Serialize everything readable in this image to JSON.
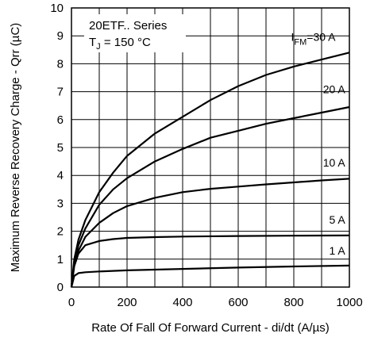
{
  "chart_data": {
    "type": "line",
    "title": "",
    "xlabel": "Rate Of Fall Of Forward Current - di/dt (A/µs)",
    "ylabel": "Maximum Reverse Recovery Charge - Qrr (µC)",
    "xlim": [
      0,
      1000
    ],
    "ylim": [
      0,
      10
    ],
    "xticks": [
      "0",
      "200",
      "400",
      "600",
      "800",
      "1000"
    ],
    "yticks": [
      "0",
      "1",
      "2",
      "3",
      "4",
      "5",
      "6",
      "7",
      "8",
      "9",
      "10"
    ],
    "grid": true,
    "annotation": {
      "series_name": "20ETF.. Series",
      "tj_prefix": "T",
      "tj_sub": "J",
      "tj_value": " = 150 °C",
      "param_prefix": "I",
      "param_sub": "FM"
    },
    "series": [
      {
        "label": "=30 A",
        "x": [
          0,
          10,
          25,
          50,
          100,
          150,
          200,
          300,
          400,
          500,
          600,
          700,
          800,
          900,
          1000
        ],
        "y": [
          0,
          1.0,
          1.7,
          2.4,
          3.4,
          4.1,
          4.7,
          5.5,
          6.1,
          6.7,
          7.2,
          7.6,
          7.9,
          8.15,
          8.4
        ]
      },
      {
        "label": "20 A",
        "x": [
          0,
          10,
          25,
          50,
          100,
          150,
          200,
          300,
          400,
          500,
          600,
          700,
          800,
          900,
          1000
        ],
        "y": [
          0,
          0.9,
          1.5,
          2.1,
          2.95,
          3.5,
          3.9,
          4.5,
          4.95,
          5.35,
          5.6,
          5.85,
          6.05,
          6.25,
          6.45
        ]
      },
      {
        "label": "10 A",
        "x": [
          0,
          10,
          25,
          50,
          100,
          150,
          200,
          300,
          400,
          500,
          600,
          700,
          800,
          900,
          1000
        ],
        "y": [
          0,
          0.8,
          1.3,
          1.8,
          2.3,
          2.65,
          2.9,
          3.2,
          3.4,
          3.52,
          3.6,
          3.68,
          3.75,
          3.82,
          3.88
        ]
      },
      {
        "label": "5 A",
        "x": [
          0,
          10,
          25,
          50,
          100,
          150,
          200,
          300,
          400,
          600,
          800,
          1000
        ],
        "y": [
          0,
          0.75,
          1.2,
          1.5,
          1.65,
          1.72,
          1.76,
          1.79,
          1.81,
          1.83,
          1.84,
          1.85
        ]
      },
      {
        "label": "1 A",
        "x": [
          0,
          10,
          25,
          50,
          100,
          200,
          400,
          600,
          800,
          1000
        ],
        "y": [
          0,
          0.4,
          0.5,
          0.53,
          0.56,
          0.6,
          0.65,
          0.7,
          0.74,
          0.77
        ]
      }
    ]
  }
}
